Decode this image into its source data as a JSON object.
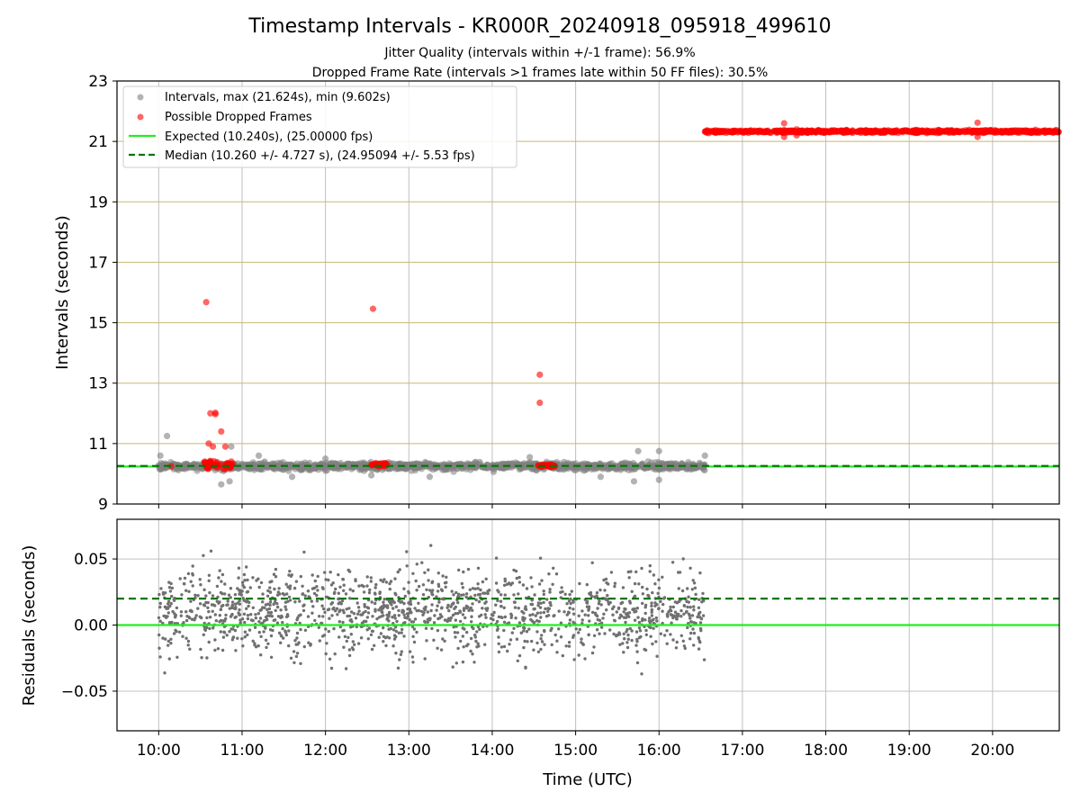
{
  "title": "Timestamp Intervals - KR000R_20240918_095918_499610",
  "subtitle_lines": [
    "Jitter Quality (intervals within +/-1 frame): 56.9%",
    "Dropped Frame Rate (intervals >1 frames late within 50 FF files): 30.5%"
  ],
  "colors": {
    "intervals": "#808080",
    "dropped": "#ff0000",
    "expected": "#22ee22",
    "median": "#007700",
    "hgrid": "#c8b873",
    "grid": "#c0c0c0"
  },
  "chart_data": [
    {
      "type": "scatter",
      "ylabel": "Intervals (seconds)",
      "ylim": [
        9,
        23
      ],
      "xlim_hours": [
        9.5,
        20.8
      ],
      "yticks": [
        "9",
        "11",
        "13",
        "15",
        "17",
        "19",
        "21",
        "23"
      ],
      "grid": true,
      "legend_position": "top-left",
      "legend": [
        "Intervals, max (21.624s), min (9.602s)",
        "Possible Dropped Frames",
        "Expected (10.240s), (25.00000 fps)",
        "Median (10.260 +/- 4.727 s), (24.95094 +/- 5.53 fps)"
      ],
      "expected_value": 10.24,
      "median_value": 10.26,
      "intervals_series": {
        "name": "Intervals, max (21.624s), min (9.602s)",
        "x_range_hours": [
          10.0,
          16.55
        ],
        "typical_mean": 10.25,
        "typical_spread": 0.12,
        "outliers": [
          [
            10.02,
            10.6
          ],
          [
            10.1,
            11.25
          ],
          [
            10.75,
            9.65
          ],
          [
            10.85,
            9.75
          ],
          [
            10.87,
            10.9
          ],
          [
            11.2,
            10.6
          ],
          [
            11.6,
            9.9
          ],
          [
            12.0,
            10.5
          ],
          [
            12.55,
            9.95
          ],
          [
            13.25,
            9.9
          ],
          [
            14.45,
            10.55
          ],
          [
            15.3,
            9.9
          ],
          [
            15.7,
            9.75
          ],
          [
            15.75,
            10.75
          ],
          [
            16.0,
            10.75
          ],
          [
            16.0,
            9.8
          ],
          [
            16.55,
            10.6
          ]
        ]
      },
      "dropped_series": {
        "name": "Possible Dropped Frames",
        "clusters": [
          {
            "x_range_hours": [
              10.55,
              10.9
            ],
            "y_mean": 10.3,
            "y_spread": 0.15
          },
          {
            "x_range_hours": [
              12.55,
              12.75
            ],
            "y_mean": 10.3,
            "y_spread": 0.08
          },
          {
            "x_range_hours": [
              14.55,
              14.75
            ],
            "y_mean": 10.27,
            "y_spread": 0.05
          },
          {
            "x_range_hours": [
              16.55,
              20.8
            ],
            "y_mean": 21.33,
            "y_spread": 0.05
          }
        ],
        "points": [
          [
            10.15,
            10.25
          ],
          [
            10.57,
            15.68
          ],
          [
            10.62,
            12.0
          ],
          [
            10.68,
            11.97
          ],
          [
            10.68,
            12.02
          ],
          [
            10.75,
            11.4
          ],
          [
            10.6,
            11.0
          ],
          [
            10.65,
            10.9
          ],
          [
            10.8,
            10.9
          ],
          [
            12.57,
            15.46
          ],
          [
            14.57,
            13.28
          ],
          [
            14.57,
            12.35
          ],
          [
            17.5,
            21.6
          ],
          [
            17.5,
            21.15
          ],
          [
            17.65,
            21.4
          ],
          [
            17.65,
            21.2
          ],
          [
            19.82,
            21.62
          ],
          [
            19.82,
            21.15
          ]
        ]
      }
    },
    {
      "type": "scatter",
      "ylabel": "Residuals (seconds)",
      "xlabel": "Time (UTC)",
      "ylim": [
        -0.08,
        0.08
      ],
      "yticks": [
        "0.05",
        "0.00",
        "−0.05"
      ],
      "xticks": [
        "10:00",
        "11:00",
        "12:00",
        "13:00",
        "14:00",
        "15:00",
        "16:00",
        "17:00",
        "18:00",
        "19:00",
        "20:00"
      ],
      "grid": true,
      "expected_value": 0.0,
      "median_value": 0.02,
      "residuals_series": {
        "name": "Residuals",
        "x_range_hours": [
          10.0,
          16.55
        ],
        "mean": 0.01,
        "spread": 0.025
      }
    }
  ]
}
